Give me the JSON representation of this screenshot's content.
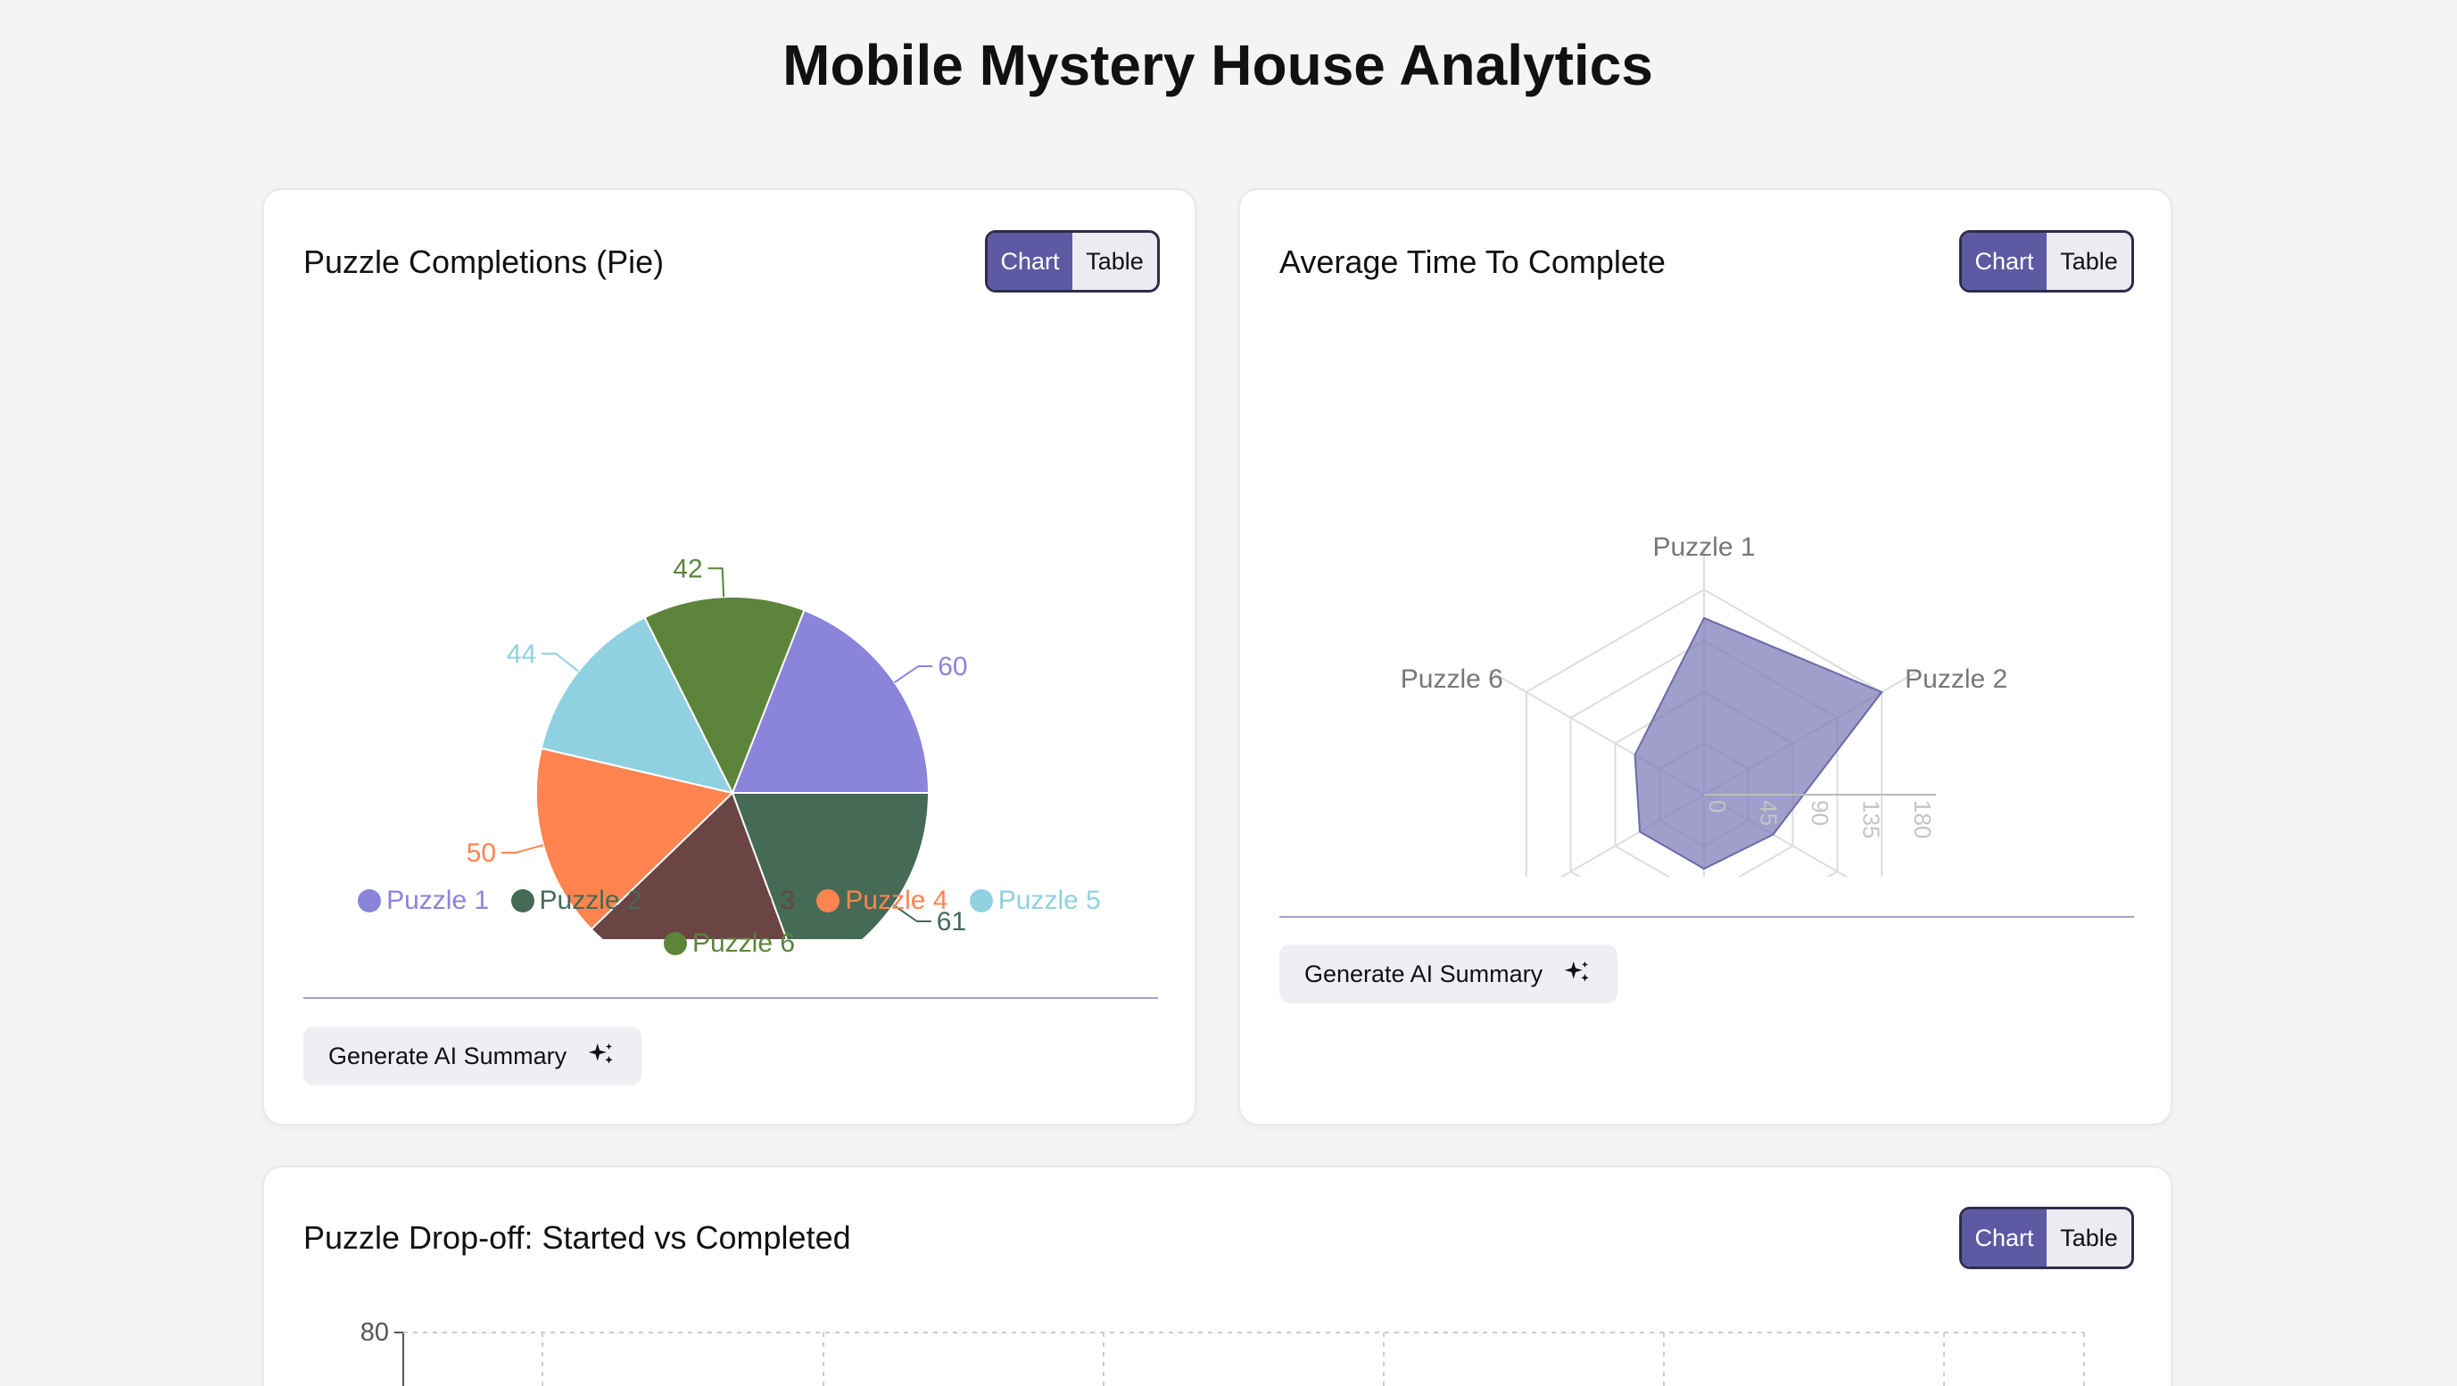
{
  "page": {
    "title": "Mobile Mystery House Analytics"
  },
  "toggle": {
    "chart_label": "Chart",
    "table_label": "Table"
  },
  "ai_button_label": "Generate AI Summary",
  "colors": {
    "accent": "#5d5aa3",
    "puzzle1": "#8a84da",
    "puzzle2": "#456a55",
    "puzzle3": "#6b4444",
    "puzzle4": "#ff8450",
    "puzzle5": "#8fd1e1",
    "puzzle6": "#5c843b",
    "radar_fill": "#7c78b6"
  },
  "cards": {
    "pie": {
      "title": "Puzzle Completions (Pie)"
    },
    "radar": {
      "title": "Average Time To Complete"
    },
    "bar": {
      "title": "Puzzle Drop-off: Started vs Completed"
    }
  },
  "chart_data": [
    {
      "type": "pie",
      "title": "Puzzle Completions (Pie)",
      "categories": [
        "Puzzle 1",
        "Puzzle 2",
        "Puzzle 3",
        "Puzzle 4",
        "Puzzle 5",
        "Puzzle 6"
      ],
      "values": [
        60,
        61,
        58,
        50,
        44,
        42
      ],
      "legend": "bottom"
    },
    {
      "type": "radar",
      "title": "Average Time To Complete",
      "categories": [
        "Puzzle 1",
        "Puzzle 2",
        "Puzzle 3",
        "Puzzle 4",
        "Puzzle 5",
        "Puzzle 6"
      ],
      "values": [
        155,
        180,
        70,
        65,
        65,
        70
      ],
      "ticks": [
        "0",
        "45",
        "90",
        "135",
        "180"
      ],
      "rmax": 180
    },
    {
      "type": "bar",
      "title": "Puzzle Drop-off: Started vs Completed",
      "ytick_top": "80"
    }
  ]
}
